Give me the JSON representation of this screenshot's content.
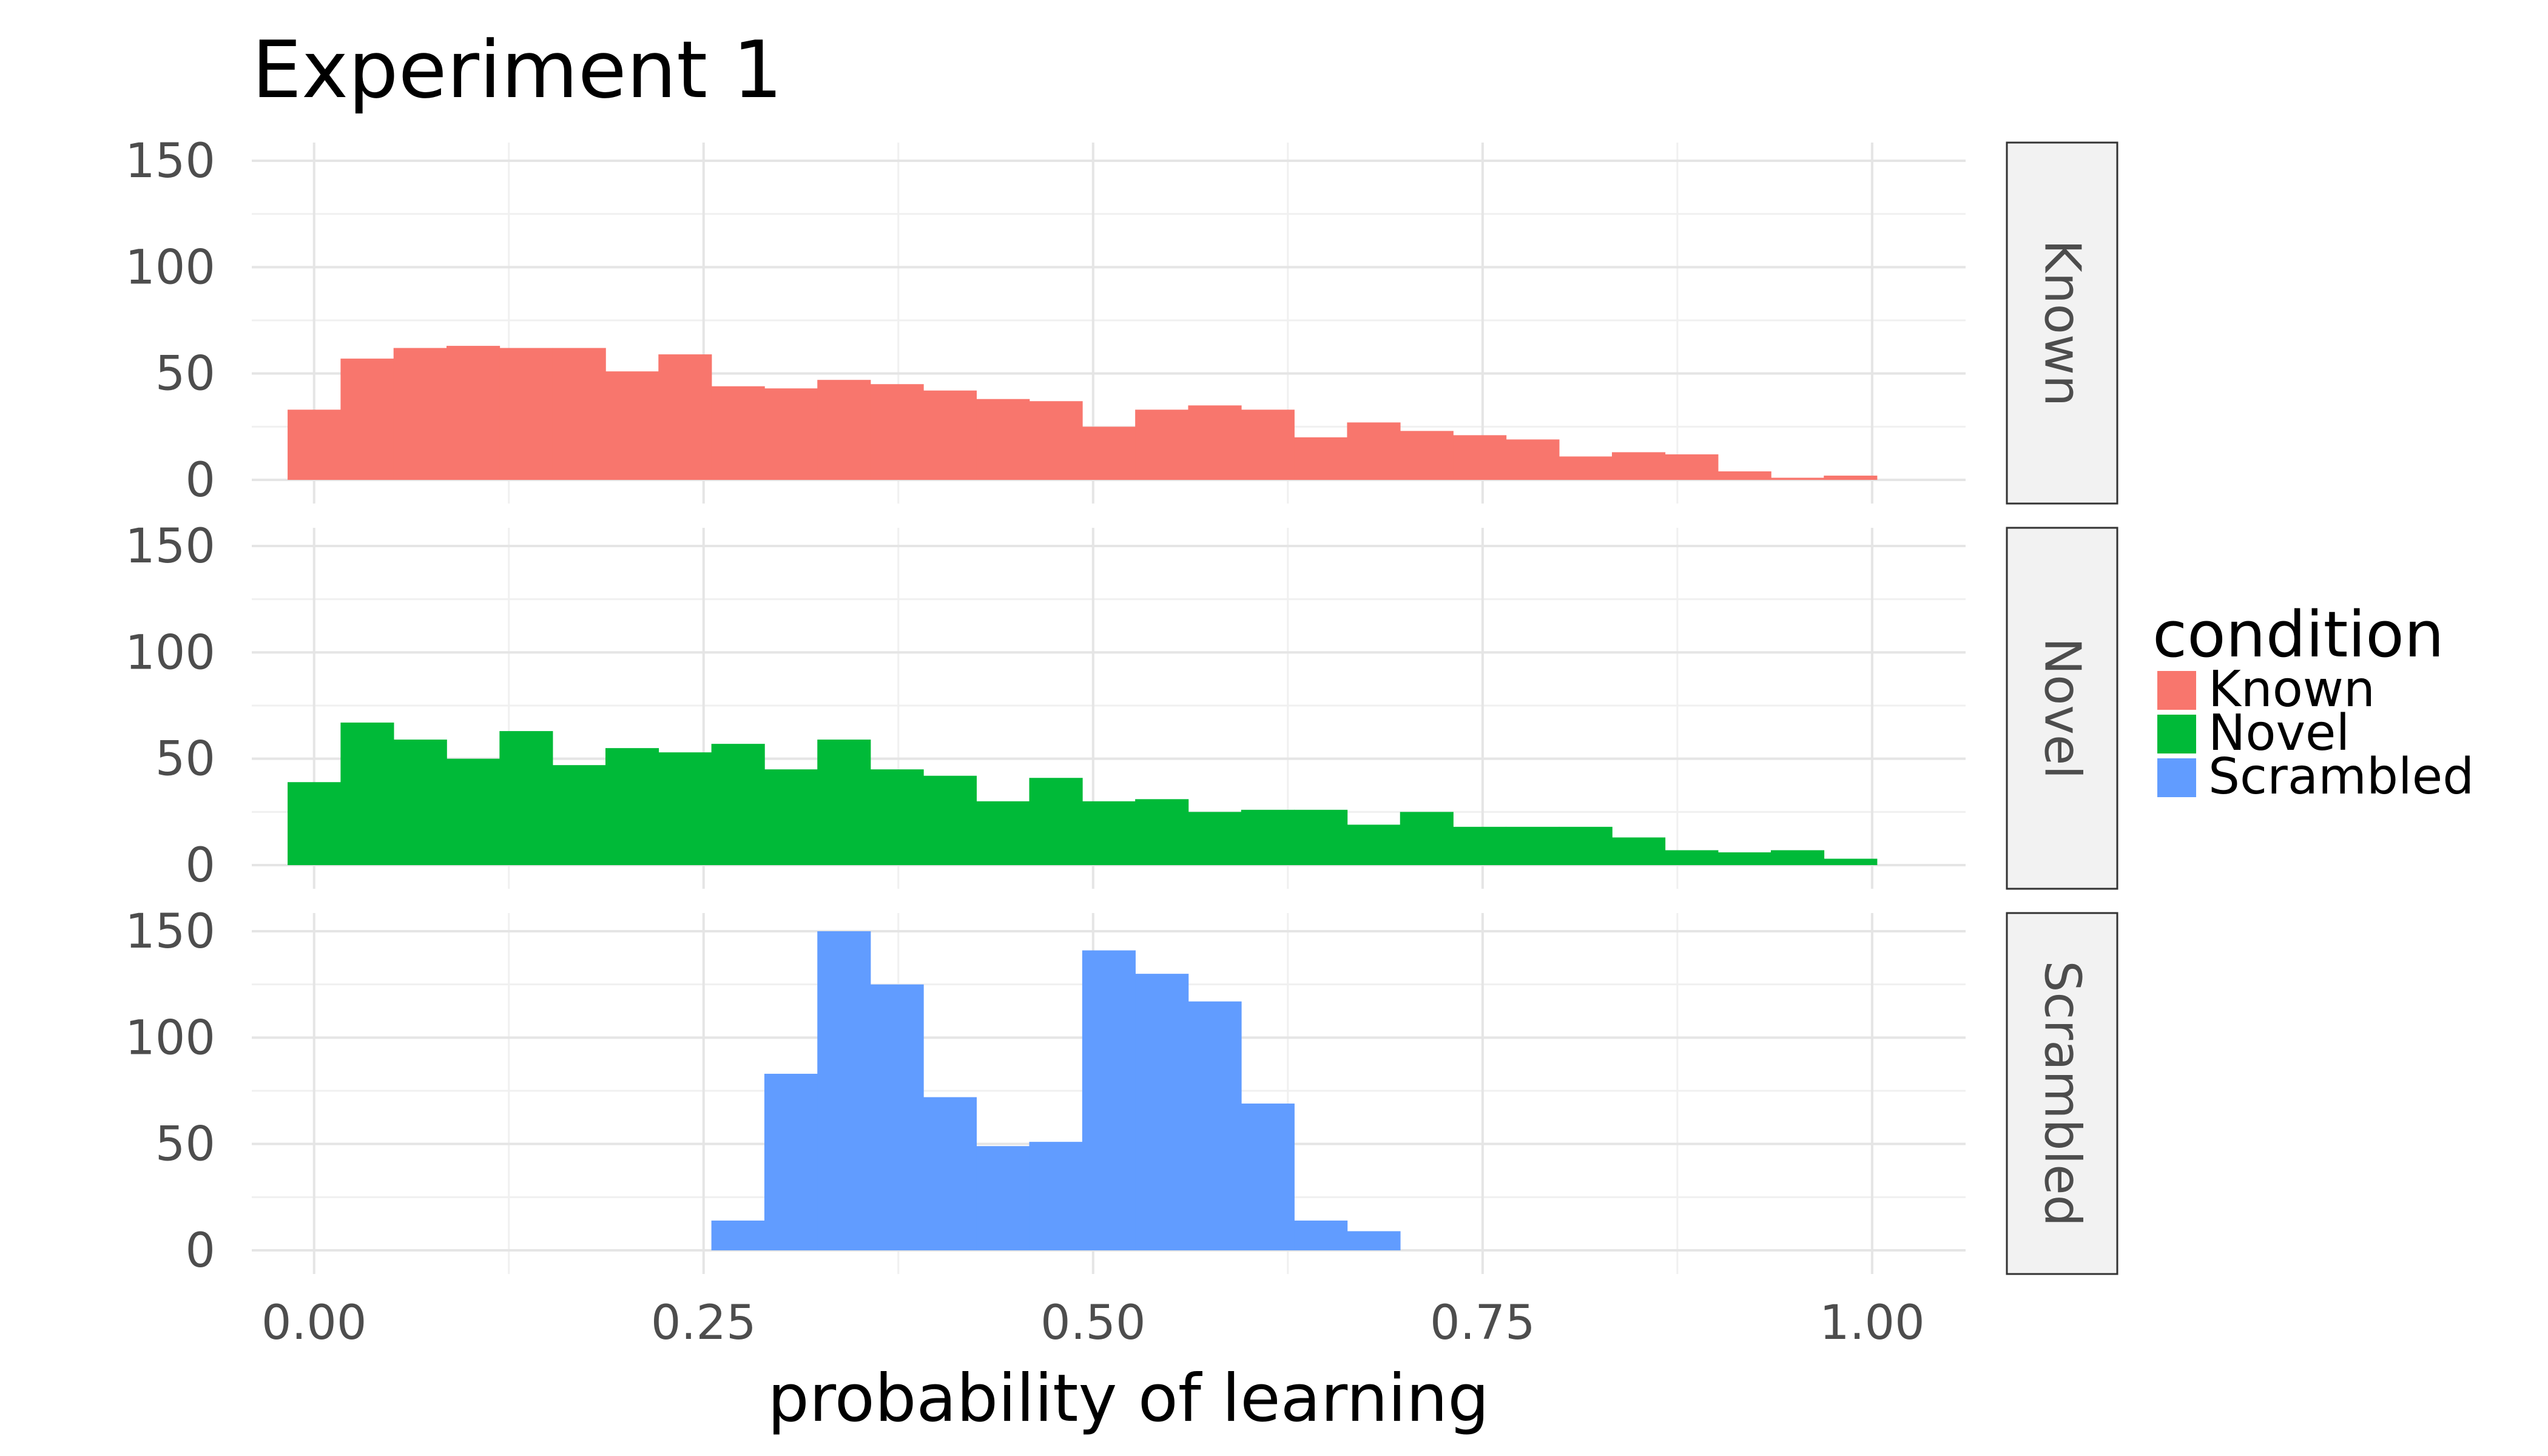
{
  "chart_data": {
    "type": "bar",
    "subtype": "histogram",
    "facet_layout": "vertical",
    "title": "Experiment 1",
    "xlabel": "probability of learning",
    "ylabel": "",
    "xlim": [
      -0.04,
      1.06
    ],
    "ylim": [
      0,
      150
    ],
    "x_ticks": [
      "0.00",
      "0.25",
      "0.50",
      "0.75",
      "1.00"
    ],
    "x_tick_values": [
      0,
      0.25,
      0.5,
      0.75,
      1.0
    ],
    "y_ticks": [
      "0",
      "50",
      "100",
      "150"
    ],
    "y_tick_values": [
      0,
      50,
      100,
      150
    ],
    "grid": true,
    "bin_width": 0.034,
    "bin_centers": [
      0.0,
      0.034,
      0.068,
      0.102,
      0.136,
      0.17,
      0.204,
      0.238,
      0.272,
      0.306,
      0.34,
      0.374,
      0.408,
      0.442,
      0.476,
      0.51,
      0.544,
      0.578,
      0.612,
      0.646,
      0.68,
      0.714,
      0.748,
      0.782,
      0.816,
      0.85,
      0.884,
      0.918,
      0.952,
      0.986
    ],
    "legend": {
      "title": "condition",
      "position": "right",
      "items": [
        "Known",
        "Novel",
        "Scrambled"
      ]
    },
    "series": [
      {
        "name": "Known",
        "color": "#F8766D",
        "values": [
          33,
          57,
          62,
          63,
          62,
          62,
          51,
          59,
          44,
          43,
          47,
          45,
          42,
          38,
          37,
          25,
          33,
          35,
          33,
          20,
          27,
          23,
          21,
          19,
          11,
          13,
          12,
          4,
          1,
          2
        ]
      },
      {
        "name": "Novel",
        "color": "#00BA38",
        "values": [
          39,
          67,
          59,
          50,
          63,
          47,
          55,
          53,
          57,
          45,
          59,
          45,
          42,
          30,
          41,
          30,
          31,
          25,
          26,
          26,
          19,
          25,
          18,
          18,
          18,
          13,
          7,
          6,
          7,
          3
        ]
      },
      {
        "name": "Scrambled",
        "color": "#619CFF",
        "values": [
          0,
          0,
          0,
          0,
          0,
          0,
          0,
          0,
          14,
          83,
          150,
          125,
          72,
          49,
          51,
          141,
          130,
          117,
          69,
          14,
          9,
          0,
          0,
          0,
          0,
          0,
          0,
          0,
          0,
          0
        ]
      }
    ]
  }
}
